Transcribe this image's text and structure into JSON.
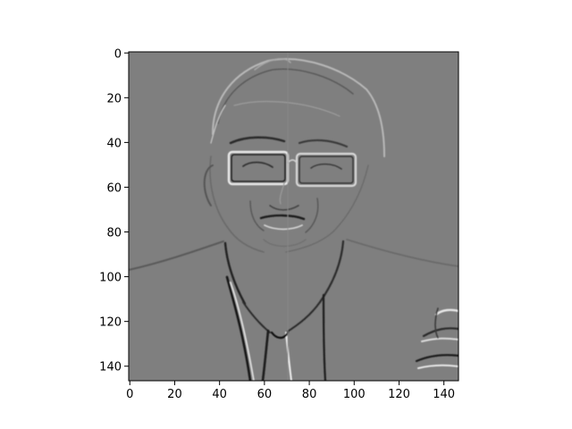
{
  "figure": {
    "image_description_name": "edge-filtered-portrait",
    "x_axis": {
      "ticks": [
        0,
        20,
        40,
        60,
        80,
        100,
        120,
        140
      ],
      "range": [
        0,
        147
      ]
    },
    "y_axis": {
      "ticks": [
        0,
        20,
        40,
        60,
        80,
        100,
        120,
        140
      ],
      "range": [
        0,
        147
      ],
      "inverted": true
    },
    "colors": {
      "image_bg": "#7f7f7f",
      "axes": "#000000",
      "edge_light": "#e6e6e6",
      "edge_dark": "#1a1a1a"
    }
  }
}
